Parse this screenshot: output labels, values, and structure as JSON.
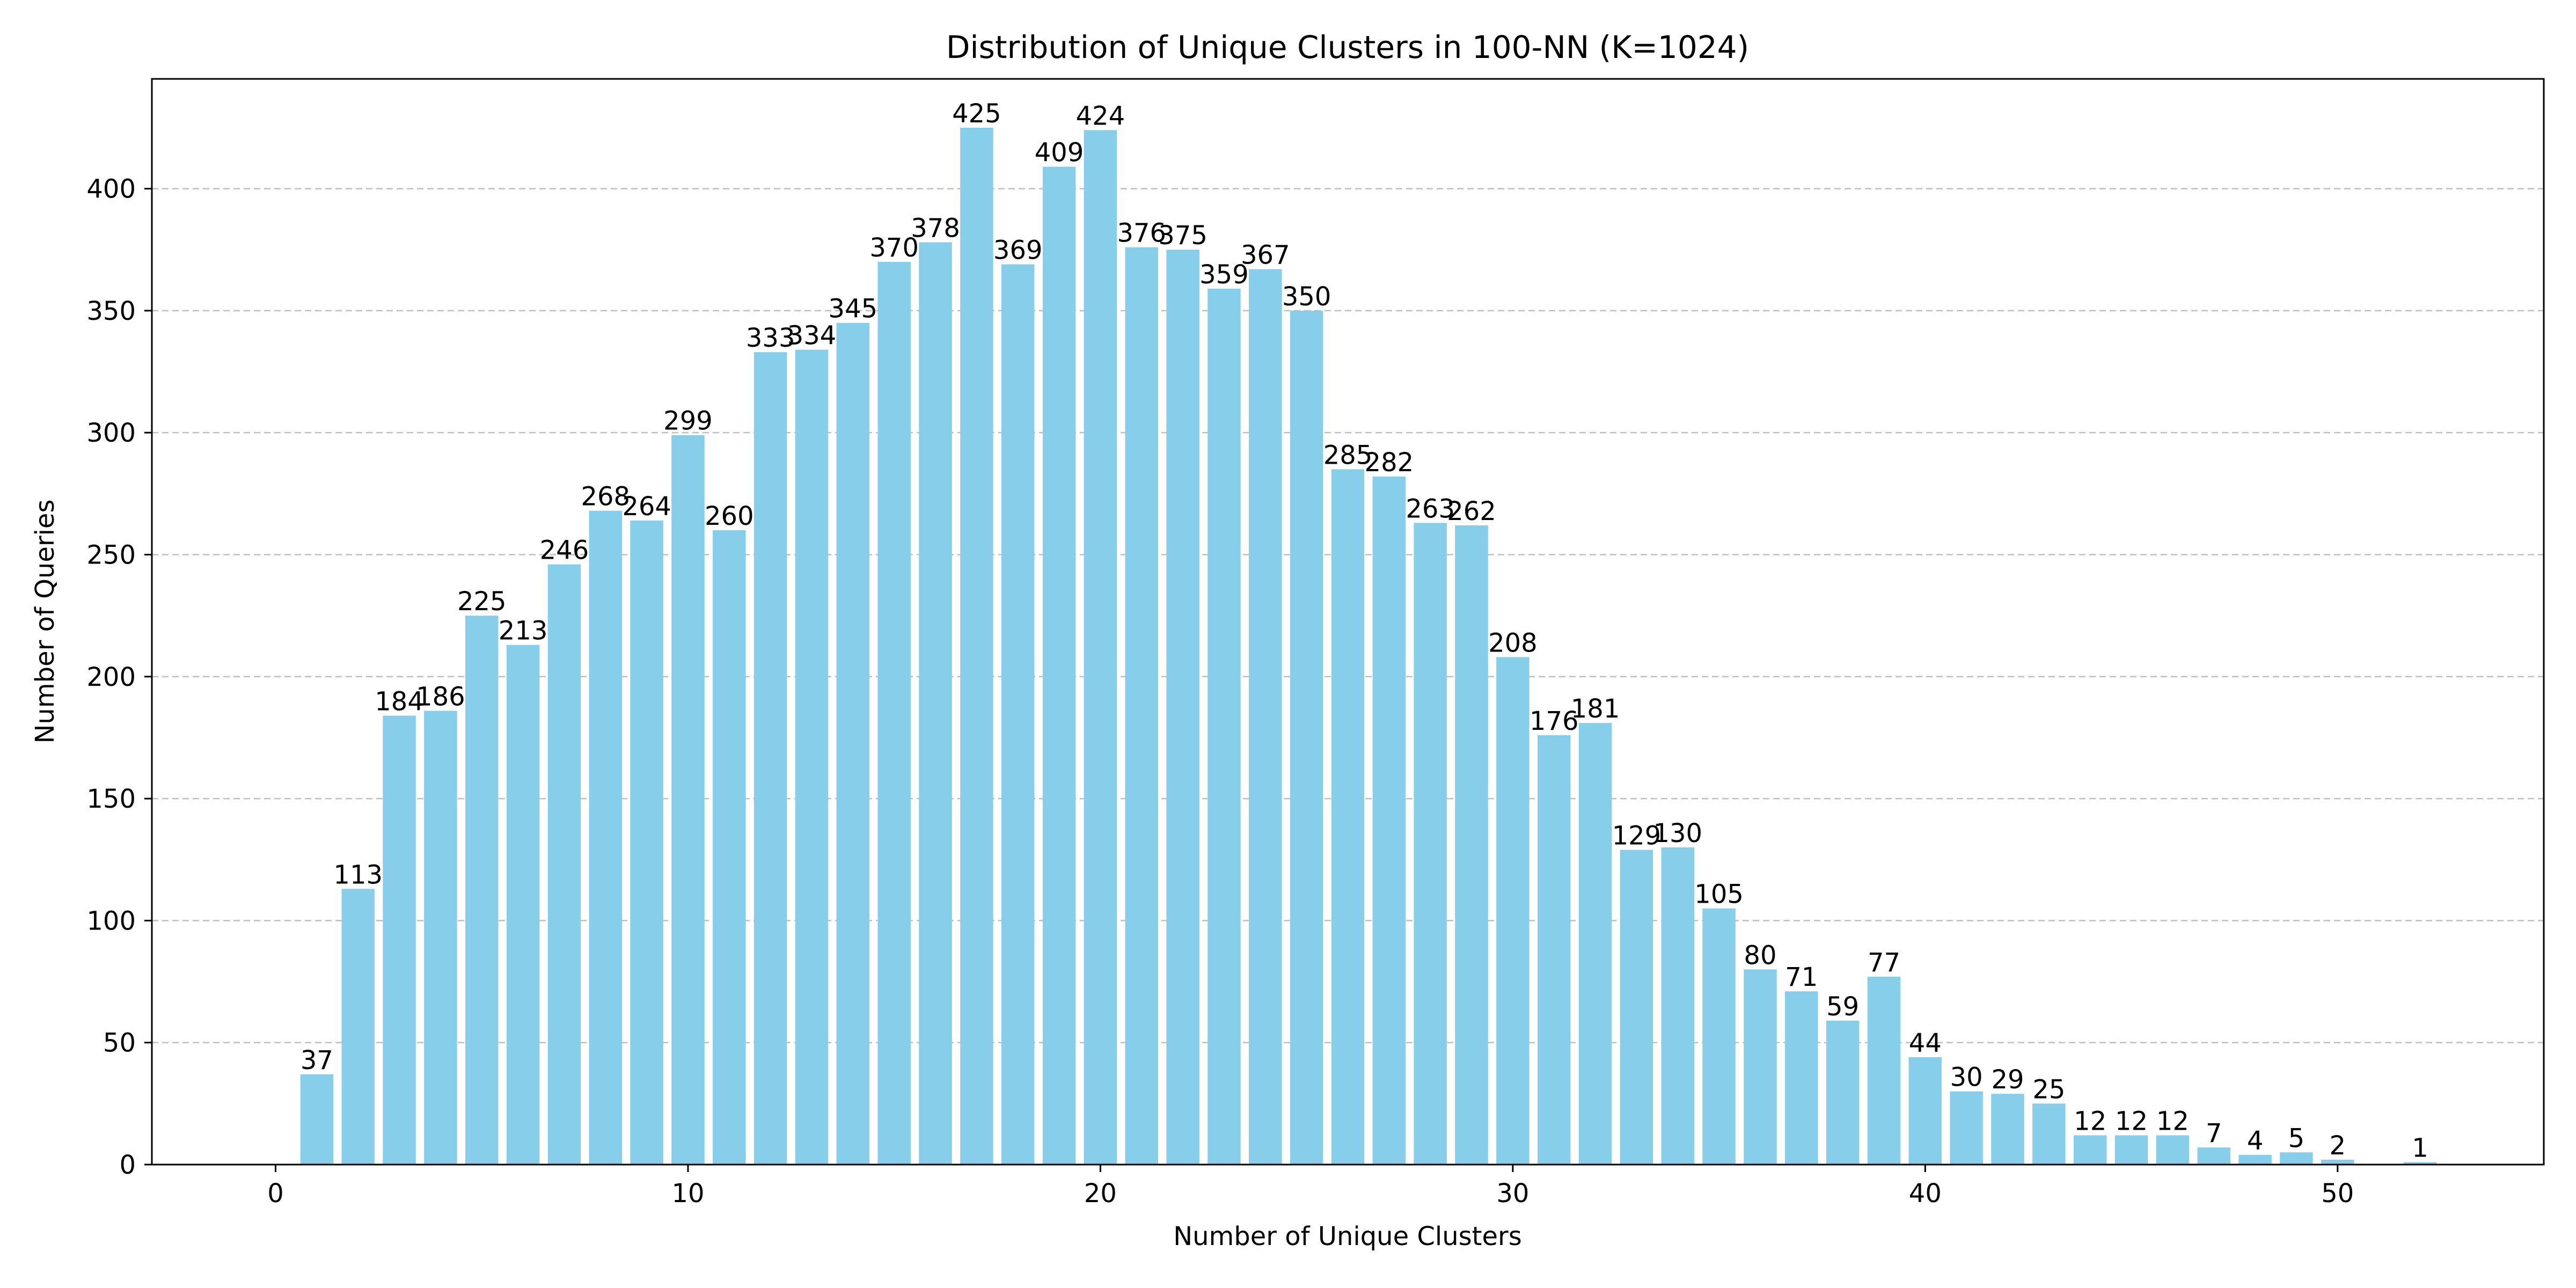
{
  "chart_data": {
    "type": "bar",
    "title": "Distribution of Unique Clusters in 100-NN (K=1024)",
    "xlabel": "Number of Unique Clusters",
    "ylabel": "Number of Queries",
    "xlim": [
      -3,
      55
    ],
    "ylim": [
      0,
      445
    ],
    "x_ticks": [
      0,
      10,
      20,
      30,
      40,
      50
    ],
    "y_ticks": [
      0,
      50,
      100,
      150,
      200,
      250,
      300,
      350,
      400
    ],
    "grid": "y-dashed",
    "bar_color": "#87CEEB",
    "grid_color": "#b0b0b0",
    "x": [
      1,
      2,
      3,
      4,
      5,
      6,
      7,
      8,
      9,
      10,
      11,
      12,
      13,
      14,
      15,
      16,
      17,
      18,
      19,
      20,
      21,
      22,
      23,
      24,
      25,
      26,
      27,
      28,
      29,
      30,
      31,
      32,
      33,
      34,
      35,
      36,
      37,
      38,
      39,
      40,
      41,
      42,
      43,
      44,
      45,
      46,
      47,
      48,
      49,
      50,
      51,
      52
    ],
    "values": [
      37,
      113,
      184,
      186,
      225,
      213,
      246,
      268,
      264,
      299,
      260,
      333,
      334,
      345,
      370,
      378,
      425,
      369,
      409,
      424,
      376,
      375,
      359,
      367,
      350,
      285,
      282,
      263,
      262,
      208,
      176,
      181,
      129,
      130,
      105,
      80,
      71,
      59,
      77,
      44,
      30,
      29,
      25,
      12,
      12,
      12,
      7,
      4,
      5,
      2,
      0,
      1
    ],
    "data_labels": [
      "37",
      "113",
      "184",
      "186",
      "225",
      "213",
      "246",
      "268",
      "264",
      "299",
      "260",
      "333",
      "334",
      "345",
      "370",
      "378",
      "425",
      "369",
      "409",
      "424",
      "376",
      "375",
      "359",
      "367",
      "350",
      "285",
      "282",
      "263",
      "262",
      "208",
      "176",
      "181",
      "129",
      "130",
      "105",
      "80",
      "71",
      "59",
      "77",
      "44",
      "30",
      "29",
      "25",
      "12",
      "12",
      "12",
      "7",
      "4",
      "5",
      "2",
      "",
      "1"
    ]
  }
}
